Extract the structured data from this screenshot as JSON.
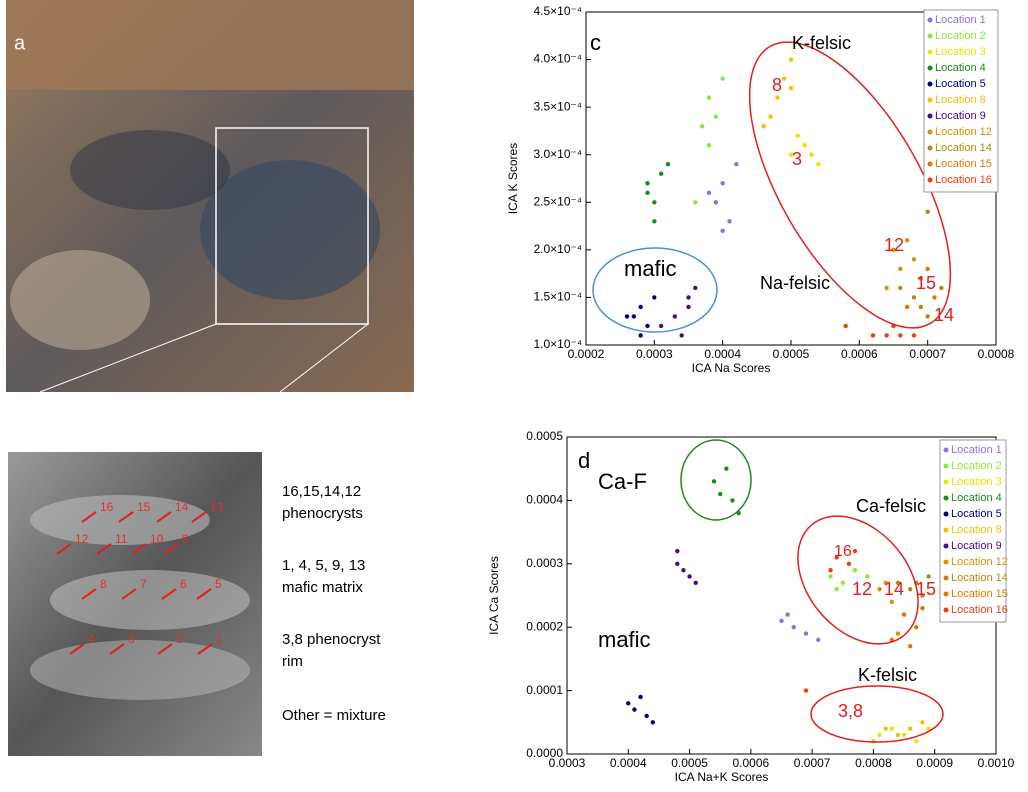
{
  "panel_labels": [
    "a",
    "c",
    "d"
  ],
  "photo_labels": [
    "16",
    "15",
    "14",
    "13",
    "12",
    "11",
    "10",
    "9",
    "8",
    "7",
    "6",
    "5",
    "4",
    "3",
    "2",
    "1"
  ],
  "notes": [
    "16,15,14,12",
    "phenocrysts",
    "1, 4, 5, 9, 13",
    "mafic matrix",
    "3,8 phenocryst",
    "rim",
    "Other = mixture"
  ],
  "chart_data": [
    {
      "type": "scatter",
      "x_label": "ICA Na Scores",
      "y_label": "ICA K Scores",
      "xlim": [
        0.0002,
        0.0008
      ],
      "xticks": [
        0.0002,
        0.0003,
        0.0004,
        0.0005,
        0.0006,
        0.0007,
        0.0008
      ],
      "ylim": [
        0.0001,
        0.00045
      ],
      "yticks": [
        {
          "value": 0.0001,
          "label": "1.0×10⁻⁴"
        },
        {
          "value": 0.00015,
          "label": "1.5×10⁻⁴"
        },
        {
          "value": 0.0002,
          "label": "2.0×10⁻⁴"
        },
        {
          "value": 0.00025,
          "label": "2.5×10⁻⁴"
        },
        {
          "value": 0.0003,
          "label": "3.0×10⁻⁴"
        },
        {
          "value": 0.00035,
          "label": "3.5×10⁻⁴"
        },
        {
          "value": 0.0004,
          "label": "4.0×10⁻⁴"
        },
        {
          "value": 0.00045,
          "label": "4.5×10⁻⁴"
        }
      ],
      "annotations": [
        "K-felsic",
        "8",
        "3",
        "12",
        "15",
        "14",
        "mafic",
        "Na-felsic"
      ],
      "series": [
        {
          "name": "Location 1",
          "color": "#8f6fe0",
          "x": [
            0.00039,
            0.0004,
            0.00041,
            0.00042,
            0.0004,
            0.00038
          ],
          "values": [
            0.00025,
            0.00027,
            0.00023,
            0.00029,
            0.00022,
            0.00026
          ]
        },
        {
          "name": "Location 2",
          "color": "#8fe63a",
          "x": [
            0.00037,
            0.00038,
            0.00039,
            0.0004,
            0.00038,
            0.00036
          ],
          "values": [
            0.00033,
            0.00036,
            0.00034,
            0.00038,
            0.00031,
            0.00025
          ]
        },
        {
          "name": "Location 3",
          "color": "#e6e600",
          "x": [
            0.0005,
            0.00052,
            0.00054,
            0.00051,
            0.00053
          ],
          "values": [
            0.0003,
            0.00031,
            0.00029,
            0.00032,
            0.0003
          ]
        },
        {
          "name": "Location 4",
          "color": "#1b8a1b",
          "x": [
            0.00029,
            0.0003,
            0.00031,
            0.0003,
            0.00029,
            0.00032
          ],
          "values": [
            0.00027,
            0.00025,
            0.00028,
            0.00023,
            0.00026,
            0.00029
          ]
        },
        {
          "name": "Location 5",
          "color": "#00007f",
          "x": [
            0.00027,
            0.00028,
            0.00029,
            0.0003,
            0.00028,
            0.00026
          ],
          "values": [
            0.00013,
            0.00014,
            0.00012,
            0.00015,
            0.00011,
            0.00013
          ]
        },
        {
          "name": "Location 8",
          "color": "#f2c200",
          "x": [
            0.00048,
            0.00049,
            0.0005,
            0.00047,
            0.0005,
            0.00046
          ],
          "values": [
            0.00036,
            0.00038,
            0.0004,
            0.00034,
            0.00037,
            0.00033
          ]
        },
        {
          "name": "Location 9",
          "color": "#4b0a8c",
          "x": [
            0.00035,
            0.00033,
            0.00035,
            0.00031,
            0.00036,
            0.00034
          ],
          "values": [
            0.00015,
            0.00013,
            0.00014,
            0.00012,
            0.00016,
            0.00011
          ]
        },
        {
          "name": "Location 12",
          "color": "#d99000",
          "x": [
            0.00065,
            0.00066,
            0.00067,
            0.00064,
            0.00068
          ],
          "values": [
            0.0002,
            0.00018,
            0.00021,
            0.00016,
            0.00019
          ]
        },
        {
          "name": "Location 14",
          "color": "#b8860b",
          "x": [
            0.00068,
            0.0007,
            0.00072,
            0.0007,
            0.00069
          ],
          "values": [
            0.00015,
            0.00013,
            0.00016,
            0.00024,
            0.00014
          ]
        },
        {
          "name": "Location 15",
          "color": "#e07800",
          "x": [
            0.00066,
            0.00069,
            0.00071,
            0.00067,
            0.0007
          ],
          "values": [
            0.00016,
            0.00017,
            0.00015,
            0.00014,
            0.00018
          ]
        },
        {
          "name": "Location 16",
          "color": "#f03c10",
          "x": [
            0.00062,
            0.00064,
            0.00066,
            0.00065,
            0.00068,
            0.00058
          ],
          "values": [
            0.00011,
            0.00011,
            0.00011,
            0.00012,
            0.00011,
            0.00012
          ]
        }
      ]
    },
    {
      "type": "scatter",
      "x_label": "ICA Na+K Scores",
      "y_label": "ICA Ca Scores",
      "xlim": [
        0.0003,
        0.001
      ],
      "xticks": [
        0.0003,
        0.0004,
        0.0005,
        0.0006,
        0.0007,
        0.0008,
        0.0009,
        {
          "value": 0.001,
          "label": "0.0010"
        }
      ],
      "ylim": [
        0,
        0.0005
      ],
      "yticks": [
        {
          "value": 0,
          "label": "0.0000"
        },
        0.0001,
        0.0002,
        0.0003,
        0.0004,
        0.0005
      ],
      "annotations": [
        "Ca-F",
        "Ca-felsic",
        "16",
        "12",
        "14",
        "15",
        "K-felsic",
        "mafic",
        "3,8"
      ],
      "series": [
        {
          "name": "Location 1",
          "color": "#8f6fe0",
          "x": [
            0.00065,
            0.00067,
            0.00069,
            0.00066,
            0.00071
          ],
          "values": [
            0.00021,
            0.0002,
            0.00019,
            0.00022,
            0.00018
          ]
        },
        {
          "name": "Location 2",
          "color": "#8fe63a",
          "x": [
            0.00073,
            0.00075,
            0.00077,
            0.00079,
            0.00074
          ],
          "values": [
            0.00028,
            0.00027,
            0.00029,
            0.00028,
            0.00026
          ]
        },
        {
          "name": "Location 3",
          "color": "#e6e600",
          "x": [
            0.00081,
            0.00083,
            0.00085,
            0.00087,
            0.00089
          ],
          "values": [
            3e-05,
            4e-05,
            3e-05,
            2e-05,
            4e-05
          ]
        },
        {
          "name": "Location 4",
          "color": "#1b8a1b",
          "x": [
            0.00054,
            0.00055,
            0.00057,
            0.00058,
            0.00056
          ],
          "values": [
            0.00043,
            0.00041,
            0.0004,
            0.00038,
            0.00045
          ]
        },
        {
          "name": "Location 5",
          "color": "#00007f",
          "x": [
            0.0004,
            0.00041,
            0.00043,
            0.00042,
            0.00044
          ],
          "values": [
            8e-05,
            7e-05,
            6e-05,
            9e-05,
            5e-05
          ]
        },
        {
          "name": "Location 8",
          "color": "#f2c200",
          "x": [
            0.00082,
            0.00084,
            0.00086,
            0.00088,
            0.0008
          ],
          "values": [
            4e-05,
            3e-05,
            4e-05,
            5e-05,
            2e-05
          ]
        },
        {
          "name": "Location 9",
          "color": "#4b0a8c",
          "x": [
            0.00048,
            0.00049,
            0.0005,
            0.00051,
            0.00048
          ],
          "values": [
            0.0003,
            0.00029,
            0.00028,
            0.00027,
            0.00032
          ]
        },
        {
          "name": "Location 12",
          "color": "#d99000",
          "x": [
            0.00081,
            0.00083,
            0.00085,
            0.00082,
            0.00084
          ],
          "values": [
            0.00026,
            0.00024,
            0.00022,
            0.00027,
            0.00019
          ]
        },
        {
          "name": "Location 14",
          "color": "#b8860b",
          "x": [
            0.00084,
            0.00086,
            0.00088,
            0.00087,
            0.00089
          ],
          "values": [
            0.00027,
            0.00026,
            0.00025,
            0.00027,
            0.00028
          ]
        },
        {
          "name": "Location 15",
          "color": "#e07800",
          "x": [
            0.00085,
            0.00087,
            0.00086,
            0.00088,
            0.00083
          ],
          "values": [
            0.00022,
            0.0002,
            0.00017,
            0.00023,
            0.00018
          ]
        },
        {
          "name": "Location 16",
          "color": "#f03c10",
          "x": [
            0.00074,
            0.00076,
            0.00077,
            0.00073,
            0.00069
          ],
          "values": [
            0.00031,
            0.0003,
            0.00032,
            0.00029,
            0.0001
          ]
        }
      ]
    }
  ]
}
